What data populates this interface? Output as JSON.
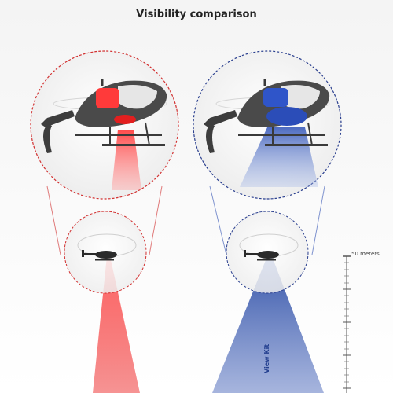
{
  "title": "Visibility comparison",
  "scale": {
    "label": "50 meters"
  },
  "kit_label": "View Kit",
  "colors": {
    "red": "#ef3b3b",
    "blue": "#2e4fa6",
    "dashed_red": "#d23030",
    "dashed_blue": "#2a3f8f",
    "helicopter": "#2b2b2b"
  },
  "panels": [
    {
      "id": "left",
      "beam_color": "red"
    },
    {
      "id": "right",
      "beam_color": "blue"
    }
  ]
}
